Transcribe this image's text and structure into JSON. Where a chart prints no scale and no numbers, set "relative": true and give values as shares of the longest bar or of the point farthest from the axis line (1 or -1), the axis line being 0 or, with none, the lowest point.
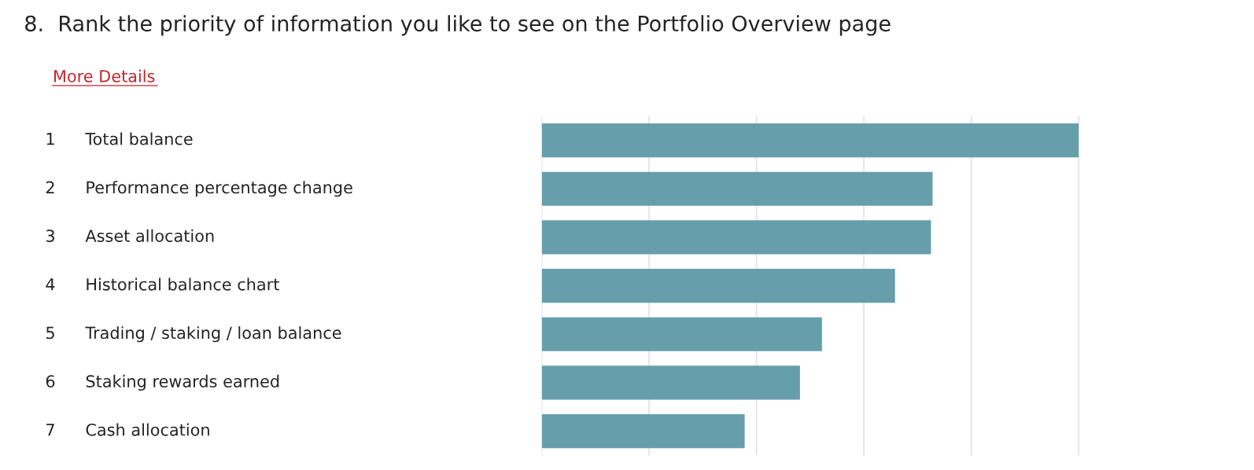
{
  "chart_data": {
    "type": "bar",
    "orientation": "horizontal",
    "relative": true,
    "title": "8.  Rank the priority of information you like to see on the Portfolio Overview page",
    "categories": [
      "Total balance",
      "Performance percentage change",
      "Asset allocation",
      "Historical balance chart",
      "Trading / staking / loan balance",
      "Staking rewards earned",
      "Cash allocation"
    ],
    "values": [
      1,
      0.728,
      0.725,
      0.658,
      0.522,
      0.481,
      0.378
    ],
    "color": "#669fab",
    "annotations": [
      "More Details",
      "1",
      "2",
      "3",
      "4",
      "5",
      "6",
      "7"
    ],
    "grid": "x",
    "legend": false
  }
}
